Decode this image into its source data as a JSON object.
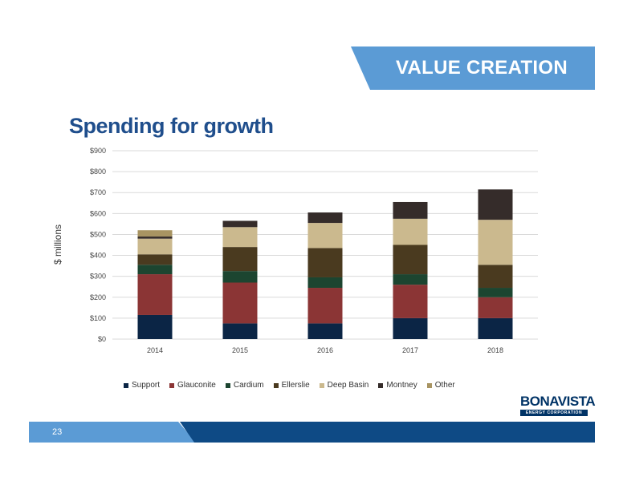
{
  "header": {
    "banner": "VALUE CREATION",
    "title": "Spending for growth"
  },
  "chart_data": {
    "type": "bar",
    "stacked": true,
    "categories": [
      "2014",
      "2015",
      "2016",
      "2017",
      "2018"
    ],
    "ylabel": "$ millions",
    "ylim": [
      0,
      900
    ],
    "yticks": [
      0,
      100,
      200,
      300,
      400,
      500,
      600,
      700,
      800,
      900
    ],
    "ytick_labels": [
      "$0",
      "$100",
      "$200",
      "$300",
      "$400",
      "$500",
      "$600",
      "$700",
      "$800",
      "$900"
    ],
    "grid": true,
    "legend_position": "bottom",
    "series": [
      {
        "name": "Support",
        "color": "#0b2545",
        "values": [
          115,
          75,
          75,
          100,
          100
        ]
      },
      {
        "name": "Glauconite",
        "color": "#8b3535",
        "values": [
          195,
          195,
          170,
          160,
          100
        ]
      },
      {
        "name": "Cardium",
        "color": "#1c4530",
        "values": [
          45,
          55,
          50,
          50,
          45
        ]
      },
      {
        "name": "Ellerslie",
        "color": "#4a3a1f",
        "values": [
          50,
          115,
          140,
          140,
          110
        ]
      },
      {
        "name": "Deep Basin",
        "color": "#cbb98e",
        "values": [
          75,
          95,
          120,
          125,
          215
        ]
      },
      {
        "name": "Montney",
        "color": "#352c2a",
        "values": [
          10,
          30,
          50,
          80,
          145
        ]
      },
      {
        "name": "Other",
        "color": "#a89462",
        "values": [
          30,
          0,
          0,
          0,
          0
        ]
      }
    ]
  },
  "logo": {
    "main": "BONAVISTA",
    "sub": "ENERGY CORPORATION"
  },
  "footer": {
    "page_number": "23"
  }
}
